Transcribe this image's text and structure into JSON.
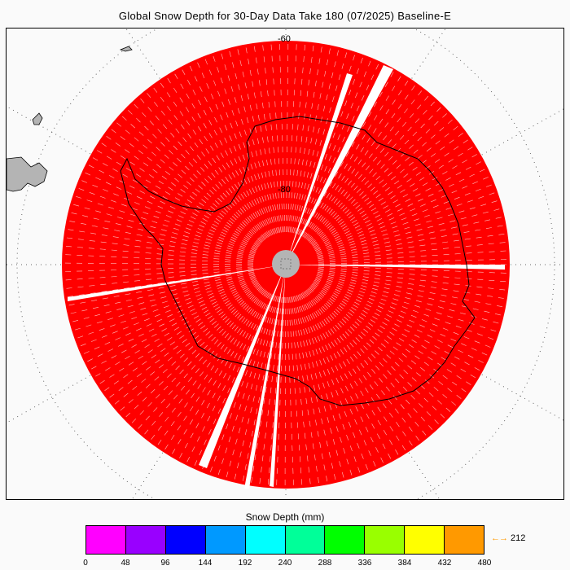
{
  "title": "Global Snow Depth for 30-Day Data Take 180 (07/2025) Baseline-E",
  "map": {
    "lat_labels": [
      "-60",
      "-80"
    ],
    "data_color": "#ff0000",
    "land_color": "#b4b4b4",
    "pole_hole_color": "#b4b4b4"
  },
  "colorbar": {
    "title": "Snow Depth (mm)",
    "ticks": [
      "0",
      "48",
      "96",
      "144",
      "192",
      "240",
      "288",
      "336",
      "384",
      "432",
      "480"
    ],
    "colors": [
      "#ff00ff",
      "#9900ff",
      "#0000ff",
      "#0099ff",
      "#00ffff",
      "#00ff99",
      "#00ff00",
      "#99ff00",
      "#ffff00",
      "#ff9900"
    ],
    "max_value": "212",
    "max_arrow": "←→",
    "max_color": "#ff9900"
  }
}
